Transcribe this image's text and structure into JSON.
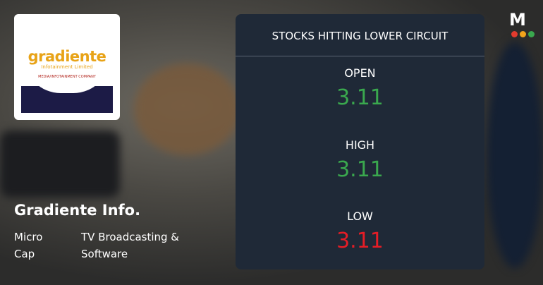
{
  "logo": {
    "name": "gradiente",
    "subtitle": "Infotainment Limited",
    "tagline": "MEDIA/INFOTAINMENT COMPANY"
  },
  "brand": "M",
  "company": {
    "name": "Gradiente Info.",
    "cap": "Micro Cap",
    "sector": "TV Broadcasting & Software"
  },
  "panel": {
    "title": "STOCKS HITTING LOWER CIRCUIT",
    "stats": [
      {
        "label": "OPEN",
        "value": 3.11,
        "color": "#3aa84e"
      },
      {
        "label": "HIGH",
        "value": 3.11,
        "color": "#3aa84e"
      },
      {
        "label": "LOW",
        "value": 3.11,
        "color": "#e51d26"
      }
    ]
  }
}
